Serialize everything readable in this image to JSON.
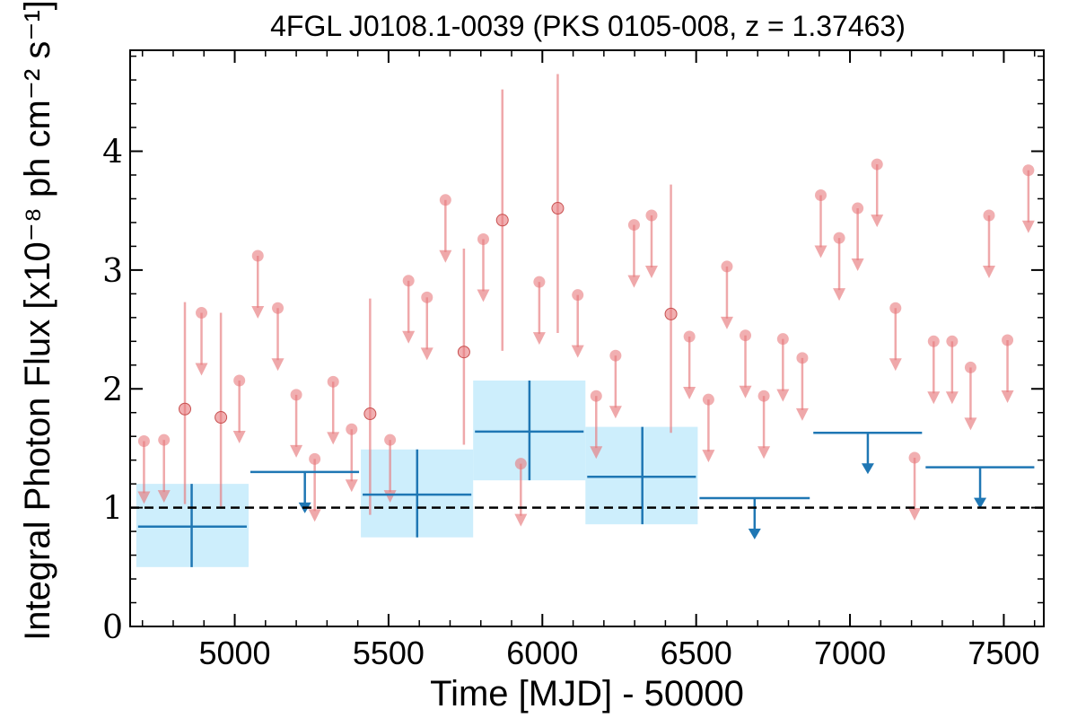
{
  "chart_data": {
    "type": "scatter",
    "title": "4FGL J0108.1-0039 (PKS 0105-008, z = 1.37463)",
    "xlabel": "Time [MJD] - 50000",
    "ylabel": "Integral Photon Flux [x10⁻⁸ ph cm⁻² s⁻¹]",
    "xlim": [
      4660,
      7630
    ],
    "ylim": [
      0,
      4.85
    ],
    "xticks": [
      5000,
      5500,
      6000,
      6500,
      7000,
      7500
    ],
    "yticks": [
      0,
      1,
      2,
      3,
      4
    ],
    "grid": false,
    "legend": "none",
    "colors": {
      "short_bin": "#e7797d",
      "long_bin": "#1f77b4",
      "long_bin_band": "#cdeefc",
      "reference_line": "#000000"
    },
    "reference_line": {
      "y": 1.0,
      "style": "dashed"
    },
    "series": [
      {
        "binning": "short",
        "points": [
          {
            "x": 4705,
            "y": 1.56,
            "upper_limit": true
          },
          {
            "x": 4770,
            "y": 1.57,
            "upper_limit": true
          },
          {
            "x": 4838,
            "y": 1.83,
            "err_lo": 0.8,
            "err_hi": 0.9
          },
          {
            "x": 4892,
            "y": 2.64,
            "upper_limit": true
          },
          {
            "x": 4955,
            "y": 1.76,
            "err_lo": 0.75,
            "err_hi": 0.88
          },
          {
            "x": 5015,
            "y": 2.07,
            "upper_limit": true
          },
          {
            "x": 5075,
            "y": 3.12,
            "upper_limit": true
          },
          {
            "x": 5140,
            "y": 2.68,
            "upper_limit": true
          },
          {
            "x": 5200,
            "y": 1.95,
            "upper_limit": true
          },
          {
            "x": 5260,
            "y": 1.41,
            "upper_limit": true
          },
          {
            "x": 5320,
            "y": 2.06,
            "upper_limit": true
          },
          {
            "x": 5380,
            "y": 1.66,
            "upper_limit": true
          },
          {
            "x": 5440,
            "y": 1.79,
            "err_lo": 0.85,
            "err_hi": 0.97
          },
          {
            "x": 5505,
            "y": 1.57,
            "upper_limit": true
          },
          {
            "x": 5565,
            "y": 2.91,
            "upper_limit": true
          },
          {
            "x": 5625,
            "y": 2.77,
            "upper_limit": true
          },
          {
            "x": 5685,
            "y": 3.59,
            "upper_limit": true
          },
          {
            "x": 5745,
            "y": 2.31,
            "err_lo": 0.78,
            "err_hi": 0.87
          },
          {
            "x": 5808,
            "y": 3.26,
            "upper_limit": true
          },
          {
            "x": 5870,
            "y": 3.42,
            "err_lo": 1.1,
            "err_hi": 1.1
          },
          {
            "x": 5930,
            "y": 1.37,
            "upper_limit": true
          },
          {
            "x": 5990,
            "y": 2.9,
            "upper_limit": true
          },
          {
            "x": 6050,
            "y": 3.52,
            "err_lo": 1.05,
            "err_hi": 1.13
          },
          {
            "x": 6115,
            "y": 2.79,
            "upper_limit": true
          },
          {
            "x": 6175,
            "y": 1.94,
            "upper_limit": true
          },
          {
            "x": 6238,
            "y": 2.28,
            "upper_limit": true
          },
          {
            "x": 6298,
            "y": 3.38,
            "upper_limit": true
          },
          {
            "x": 6355,
            "y": 3.46,
            "upper_limit": true
          },
          {
            "x": 6418,
            "y": 2.63,
            "err_lo": 1.0,
            "err_hi": 1.09
          },
          {
            "x": 6478,
            "y": 2.44,
            "upper_limit": true
          },
          {
            "x": 6540,
            "y": 1.91,
            "upper_limit": true
          },
          {
            "x": 6600,
            "y": 3.03,
            "upper_limit": true
          },
          {
            "x": 6660,
            "y": 2.45,
            "upper_limit": true
          },
          {
            "x": 6720,
            "y": 1.94,
            "upper_limit": true
          },
          {
            "x": 6782,
            "y": 2.42,
            "upper_limit": true
          },
          {
            "x": 6845,
            "y": 2.26,
            "upper_limit": true
          },
          {
            "x": 6905,
            "y": 3.63,
            "upper_limit": true
          },
          {
            "x": 6965,
            "y": 3.27,
            "upper_limit": true
          },
          {
            "x": 7025,
            "y": 3.52,
            "upper_limit": true
          },
          {
            "x": 7088,
            "y": 3.89,
            "upper_limit": true
          },
          {
            "x": 7148,
            "y": 2.68,
            "upper_limit": true
          },
          {
            "x": 7210,
            "y": 1.42,
            "upper_limit": true
          },
          {
            "x": 7272,
            "y": 2.4,
            "upper_limit": true
          },
          {
            "x": 7332,
            "y": 2.4,
            "upper_limit": true
          },
          {
            "x": 7392,
            "y": 2.18,
            "upper_limit": true
          },
          {
            "x": 7452,
            "y": 3.46,
            "upper_limit": true
          },
          {
            "x": 7512,
            "y": 2.41,
            "upper_limit": true
          },
          {
            "x": 7580,
            "y": 3.84,
            "upper_limit": true
          }
        ]
      },
      {
        "binning": "long",
        "points": [
          {
            "x": 4860,
            "x_lo": 4680,
            "x_hi": 5045,
            "y": 0.84,
            "err_lo": 0.34,
            "err_hi": 0.36
          },
          {
            "x": 5228,
            "x_lo": 5045,
            "x_hi": 5410,
            "y": 1.3,
            "upper_limit": true
          },
          {
            "x": 5593,
            "x_lo": 5410,
            "x_hi": 5775,
            "y": 1.11,
            "err_lo": 0.36,
            "err_hi": 0.38
          },
          {
            "x": 5958,
            "x_lo": 5775,
            "x_hi": 6140,
            "y": 1.64,
            "err_lo": 0.41,
            "err_hi": 0.43
          },
          {
            "x": 6325,
            "x_lo": 6140,
            "x_hi": 6505,
            "y": 1.26,
            "err_lo": 0.4,
            "err_hi": 0.42
          },
          {
            "x": 6690,
            "x_lo": 6505,
            "x_hi": 6875,
            "y": 1.08,
            "upper_limit": true
          },
          {
            "x": 7058,
            "x_lo": 6875,
            "x_hi": 7240,
            "y": 1.63,
            "upper_limit": true
          },
          {
            "x": 7423,
            "x_lo": 7240,
            "x_hi": 7605,
            "y": 1.34,
            "upper_limit": true
          }
        ]
      }
    ]
  }
}
